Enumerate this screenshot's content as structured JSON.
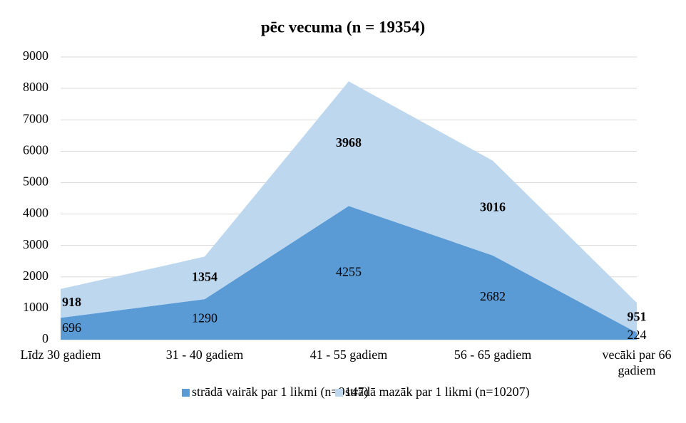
{
  "chart_data": {
    "type": "stacked_area",
    "title": "pēc vecuma (n = 19354)",
    "categories": [
      "Līdz 30 gadiem",
      "31 - 40 gadiem",
      "41 - 55 gadiem",
      "56 - 65 gadiem",
      "vecāki par 66 gadiem"
    ],
    "series": [
      {
        "name": "strādā vairāk par 1 likmi (n=9147)",
        "color": "#5b9bd5",
        "values": [
          696,
          1290,
          4255,
          2682,
          224
        ]
      },
      {
        "name": "strādā mazāk par 1 likmi (n=10207)",
        "color": "#bdd7ee",
        "values": [
          918,
          1354,
          3968,
          3016,
          951
        ]
      }
    ],
    "ylim": [
      0,
      9000
    ],
    "yticks": [
      0,
      1000,
      2000,
      3000,
      4000,
      5000,
      6000,
      7000,
      8000,
      9000
    ],
    "grid": true,
    "legend": "bottom"
  }
}
